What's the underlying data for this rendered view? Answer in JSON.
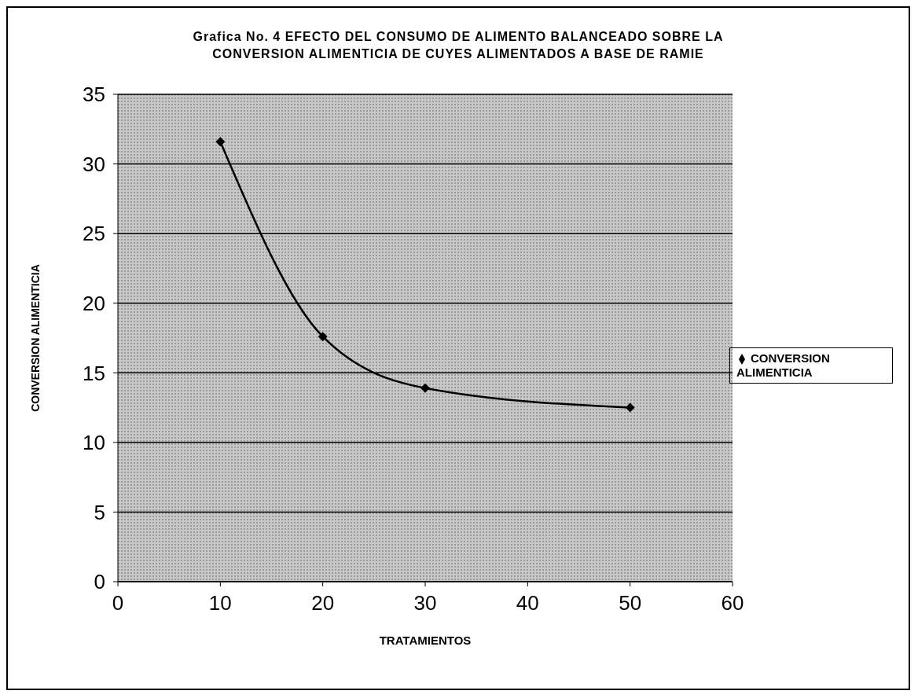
{
  "chart_data": {
    "type": "line",
    "title": "Grafica No. 4  EFECTO DEL CONSUMO DE ALIMENTO BALANCEADO SOBRE LA CONVERSION ALIMENTICIA DE CUYES ALIMENTADOS A BASE DE RAMIE",
    "xlabel": "TRATAMIENTOS",
    "ylabel": "CONVERSION ALIMENTICIA",
    "x": [
      10,
      20,
      30,
      50
    ],
    "series": [
      {
        "name": "CONVERSION ALIMENTICIA",
        "color": "#000000",
        "values": [
          31.6,
          17.6,
          13.9,
          12.5
        ]
      }
    ],
    "xlim": [
      0,
      60
    ],
    "xticks": [
      0,
      10,
      20,
      30,
      40,
      50,
      60
    ],
    "ylim": [
      0,
      35
    ],
    "yticks": [
      0,
      5,
      10,
      15,
      20,
      25,
      30,
      35
    ],
    "grid": "y",
    "legend": "right",
    "marker": "diamond",
    "line_style": "solid"
  }
}
